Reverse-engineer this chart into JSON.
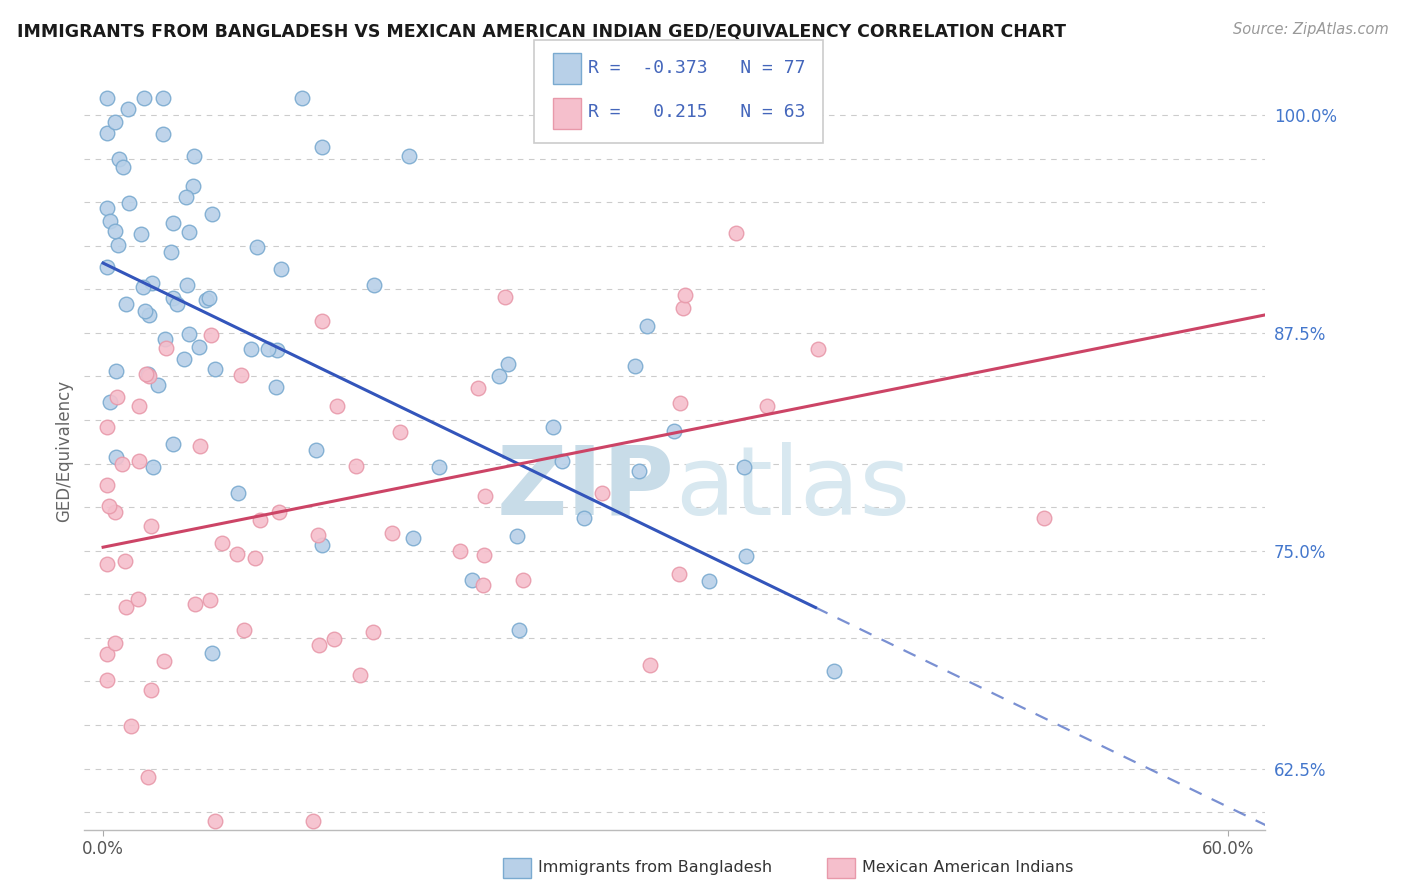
{
  "title": "IMMIGRANTS FROM BANGLADESH VS MEXICAN AMERICAN INDIAN GED/EQUIVALENCY CORRELATION CHART",
  "source": "Source: ZipAtlas.com",
  "ylabel": "GED/Equivalency",
  "blue_R": -0.373,
  "blue_N": 77,
  "pink_R": 0.215,
  "pink_N": 63,
  "blue_color": "#b8d0e8",
  "blue_edge": "#7aaad0",
  "pink_color": "#f5bfcc",
  "pink_edge": "#e899aa",
  "blue_line_color": "#3355bb",
  "pink_line_color": "#cc4466",
  "bg_color": "#ffffff",
  "grid_color": "#cccccc",
  "watermark_zip_color": "#c8dce8",
  "watermark_atlas_color": "#d8e8f0",
  "xlim_min": -1.0,
  "xlim_max": 62.0,
  "ylim_min": 59.0,
  "ylim_max": 102.5,
  "xtick_left_label": "0.0%",
  "xtick_right_label": "60.0%",
  "ytick_labeled": [
    100.0,
    87.5,
    75.0,
    62.5
  ],
  "ytick_all": [
    60.0,
    62.5,
    65.0,
    67.5,
    70.0,
    72.5,
    75.0,
    77.5,
    80.0,
    82.5,
    85.0,
    87.5,
    90.0,
    92.5,
    95.0,
    97.5,
    100.0
  ],
  "blue_line_x0": 0,
  "blue_line_y0": 91.5,
  "blue_line_slope": -0.52,
  "blue_solid_xmax": 38,
  "pink_line_x0": 0,
  "pink_line_y0": 75.2,
  "pink_line_slope": 0.215,
  "pink_solid_xmax": 62
}
